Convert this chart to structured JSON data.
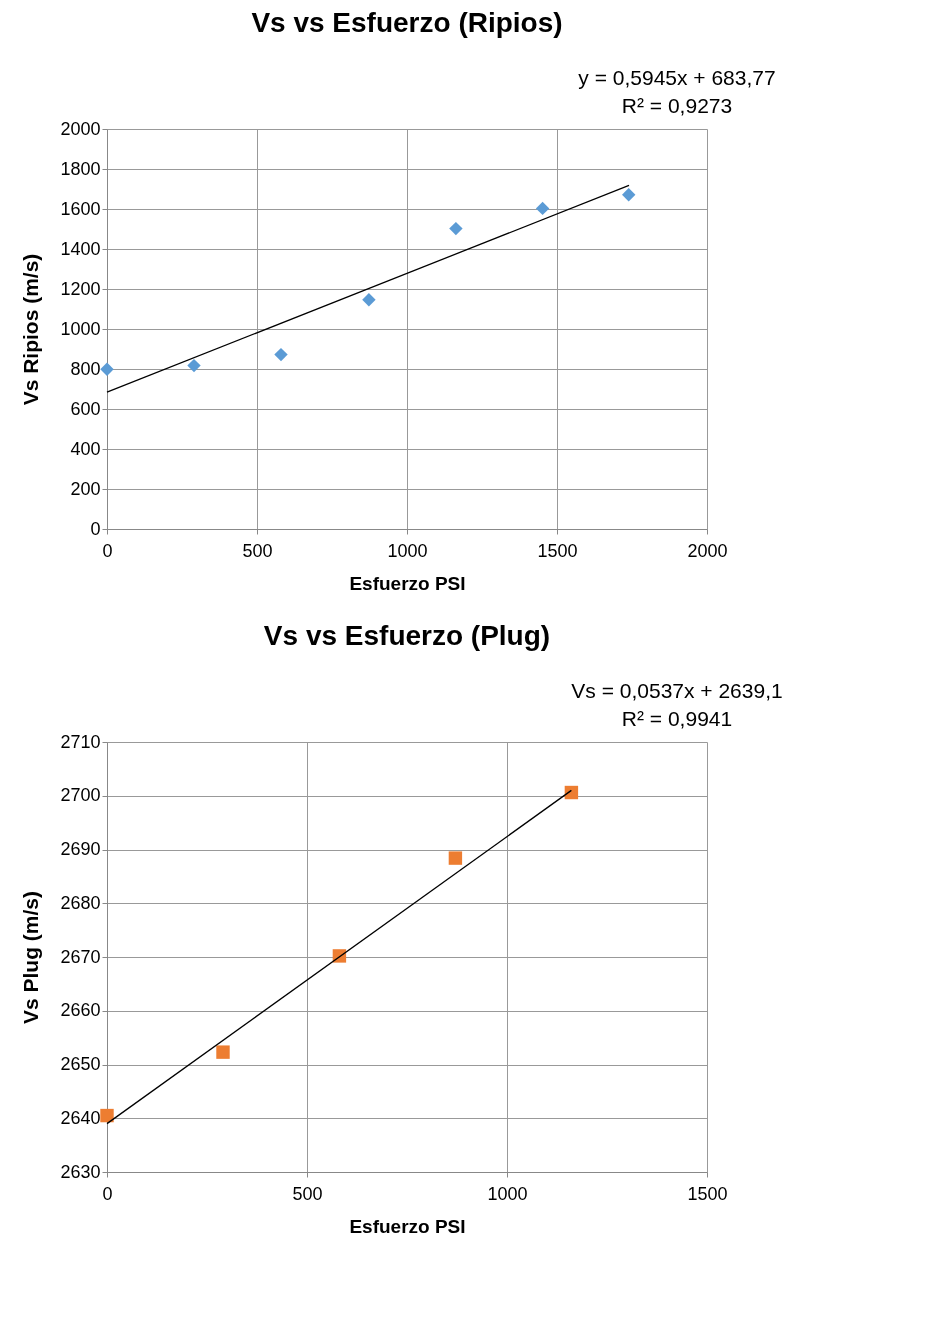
{
  "chart_data": [
    {
      "type": "scatter",
      "title": "Vs vs Esfuerzo (Ripios)",
      "xlabel": "Esfuerzo PSI",
      "ylabel": "Vs Ripios  (m/s)",
      "grid": true,
      "xlim": [
        0,
        2000
      ],
      "xticks": [
        0,
        500,
        1000,
        1500,
        2000
      ],
      "ylim": [
        0,
        2000
      ],
      "yticks": [
        0,
        200,
        400,
        600,
        800,
        1000,
        1200,
        1400,
        1600,
        1800,
        2000
      ],
      "annotations": [
        "y = 0,5945x + 683,77",
        "R² = 0,9273"
      ],
      "series": [
        {
          "color": "#5b9bd5",
          "marker": "diamond",
          "x": [
            0,
            290,
            580,
            873,
            1163,
            1452,
            1739
          ],
          "values": [
            799,
            817,
            872,
            1146,
            1502,
            1603,
            1671
          ]
        },
        {
          "type": "line",
          "marker": "none",
          "color": "#000000",
          "x": [
            0,
            1740
          ],
          "values": [
            684,
            1718
          ]
        }
      ]
    },
    {
      "type": "scatter",
      "title": "Vs vs Esfuerzo (Plug)",
      "xlabel": "Esfuerzo PSI",
      "ylabel": "Vs Plug  (m/s)",
      "grid": true,
      "xlim": [
        0,
        1500
      ],
      "xticks": [
        0,
        500,
        1000,
        1500
      ],
      "ylim": [
        2630,
        2710
      ],
      "yticks": [
        2630,
        2640,
        2650,
        2660,
        2670,
        2680,
        2690,
        2700,
        2710
      ],
      "annotations": [
        "Vs = 0,0537x + 2639,1",
        "R² = 0,9941"
      ],
      "series": [
        {
          "color": "#ed7d31",
          "marker": "square",
          "x": [
            0,
            290,
            581,
            871,
            1161
          ],
          "values": [
            2640.5,
            2652.3,
            2670.2,
            2688.4,
            2700.6
          ]
        },
        {
          "type": "line",
          "marker": "none",
          "color": "#000000",
          "x": [
            0,
            1161
          ],
          "values": [
            2639,
            2701
          ]
        }
      ]
    }
  ]
}
